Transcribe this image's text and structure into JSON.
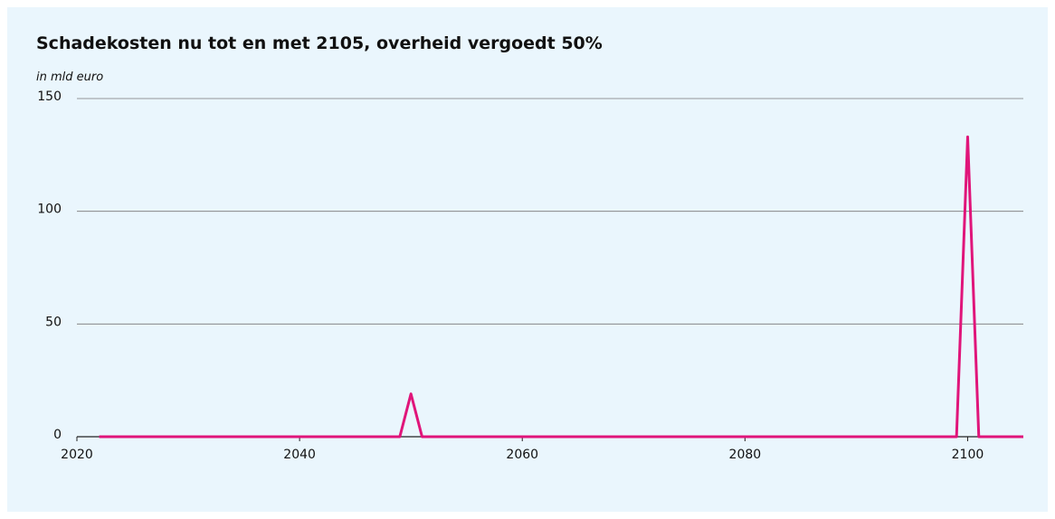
{
  "chart_data": {
    "type": "line",
    "title": "Schadekosten nu tot en met 2105, overheid vergoedt 50%",
    "subtitle": "in mld euro",
    "x": [
      2022,
      2049,
      2050,
      2051,
      2099,
      2100,
      2101,
      2105
    ],
    "series": [
      {
        "name": null,
        "color": "#e0157a",
        "values": [
          0,
          0,
          19,
          0,
          0,
          133,
          0,
          0
        ]
      }
    ],
    "xlim": [
      2020,
      2105
    ],
    "xticks": [
      2020,
      2040,
      2060,
      2080,
      2100
    ],
    "ylim": [
      0,
      150
    ],
    "yticks": [
      0,
      50,
      100,
      150
    ],
    "grid": true
  }
}
